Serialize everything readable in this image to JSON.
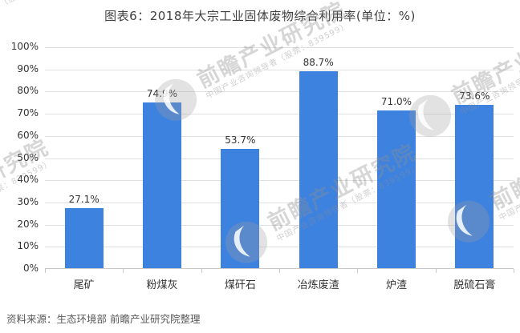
{
  "title": "图表6：2018年大宗工业固体废物综合利用率(单位：%)",
  "source": "资料来源：生态环境部 前瞻产业研究院整理",
  "watermark": {
    "text": "前瞻产业研究院",
    "subtext": "中国产业咨询领导者（股票：839599）"
  },
  "colors": {
    "bar": "#3E82E0",
    "grid": "#E0E0E0",
    "axis": "#C9C9C9",
    "title_text": "#404040",
    "label_text": "#333333",
    "source_text": "#595959"
  },
  "chart_data": {
    "type": "bar",
    "title": "图表6：2018年大宗工业固体废物综合利用率(单位：%)",
    "categories": [
      "尾矿",
      "粉煤灰",
      "煤矸石",
      "冶炼废渣",
      "炉渣",
      "脱硫石膏"
    ],
    "values": [
      27.1,
      74.9,
      53.7,
      88.7,
      71.0,
      73.6
    ],
    "value_labels": [
      "27.1%",
      "74.9%",
      "53.7%",
      "88.7%",
      "71.0%",
      "73.6%"
    ],
    "xlabel": "",
    "ylabel": "",
    "unit": "%",
    "ylim": [
      0,
      100
    ],
    "ytick_step": 10,
    "ytick_labels": [
      "0%",
      "10%",
      "20%",
      "30%",
      "40%",
      "50%",
      "60%",
      "70%",
      "80%",
      "90%",
      "100%"
    ],
    "grid": true,
    "legend": false
  }
}
